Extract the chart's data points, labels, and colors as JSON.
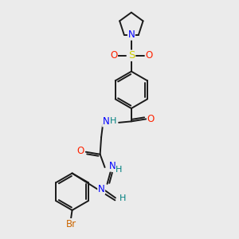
{
  "background_color": "#ebebeb",
  "bond_color": "#1a1a1a",
  "colors": {
    "N": "#0000ff",
    "O": "#ff2200",
    "S": "#cccc00",
    "Br": "#cc6600",
    "H": "#008080",
    "C": "#1a1a1a"
  },
  "figsize": [
    3.0,
    3.0
  ],
  "dpi": 100
}
